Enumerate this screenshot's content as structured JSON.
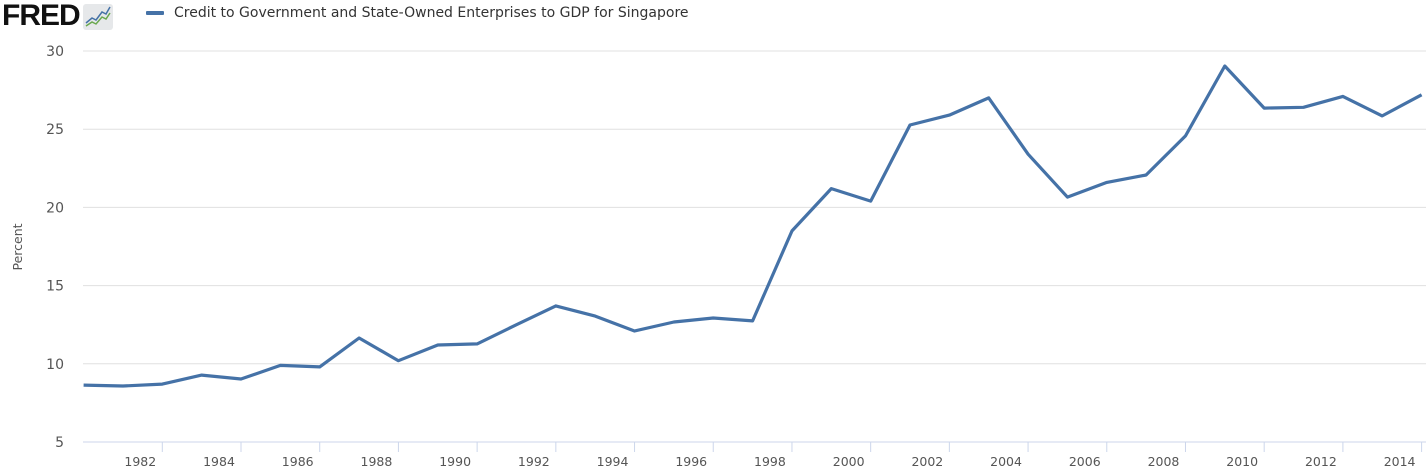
{
  "brand": {
    "name": "FRED",
    "icon": "line-chart-icon"
  },
  "colors": {
    "series": "#4572a7",
    "grid": "#e0e0e0"
  },
  "chart_data": {
    "type": "line",
    "title": "",
    "xlabel": "",
    "ylabel": "Percent",
    "ylim": [
      5,
      30
    ],
    "xlim": [
      1980,
      2014
    ],
    "grid": true,
    "legend_position": "top-left",
    "yticks": [
      "5",
      "10",
      "15",
      "20",
      "25",
      "30"
    ],
    "xticks": [
      "1982",
      "1984",
      "1986",
      "1988",
      "1990",
      "1992",
      "1994",
      "1996",
      "1998",
      "2000",
      "2002",
      "2004",
      "2006",
      "2008",
      "2010",
      "2012",
      "2014"
    ],
    "series": [
      {
        "name": "Credit to Government and State-Owned Enterprises to GDP for Singapore",
        "x": [
          1980,
          1981,
          1982,
          1983,
          1984,
          1985,
          1986,
          1987,
          1988,
          1989,
          1990,
          1991,
          1992,
          1993,
          1994,
          1995,
          1996,
          1997,
          1998,
          1999,
          2000,
          2001,
          2002,
          2003,
          2004,
          2005,
          2006,
          2007,
          2008,
          2009,
          2010,
          2011,
          2012,
          2013,
          2014
        ],
        "values": [
          8.64,
          8.58,
          8.7,
          9.28,
          9.03,
          9.9,
          9.8,
          11.65,
          10.2,
          11.2,
          11.27,
          12.5,
          13.7,
          13.05,
          12.1,
          12.67,
          12.93,
          12.74,
          18.5,
          21.2,
          20.4,
          25.27,
          25.9,
          27.0,
          23.4,
          20.66,
          21.6,
          22.07,
          24.57,
          29.04,
          26.35,
          26.4,
          27.1,
          25.85,
          27.2
        ]
      }
    ]
  }
}
